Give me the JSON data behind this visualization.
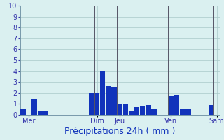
{
  "title": "",
  "xlabel": "Précipitations 24h ( mm )",
  "background_color": "#daf0f0",
  "grid_color": "#a8c8c8",
  "bar_color": "#1133bb",
  "ylim": [
    0,
    10
  ],
  "yticks": [
    0,
    1,
    2,
    3,
    4,
    5,
    6,
    7,
    8,
    9,
    10
  ],
  "day_labels": [
    "Mer",
    "Dim",
    "Jeu",
    "Ven",
    "Sam"
  ],
  "day_positions": [
    1,
    13,
    17,
    26,
    34
  ],
  "vline_positions": [
    12.5,
    16.5,
    25.5,
    33.5
  ],
  "bar_values": [
    0.6,
    0.0,
    1.4,
    0.3,
    0.4,
    0.0,
    0.0,
    0.0,
    0.0,
    0.0,
    0.0,
    0.0,
    2.0,
    2.0,
    4.0,
    2.6,
    2.5,
    1.0,
    1.0,
    0.3,
    0.7,
    0.8,
    0.9,
    0.6,
    0.0,
    0.0,
    1.7,
    1.8,
    0.6,
    0.5,
    0.0,
    0.0,
    0.0,
    0.9,
    0.0
  ],
  "n_bars": 35,
  "xlabel_fontsize": 9,
  "tick_fontsize": 7,
  "ylabel_fontsize": 7
}
